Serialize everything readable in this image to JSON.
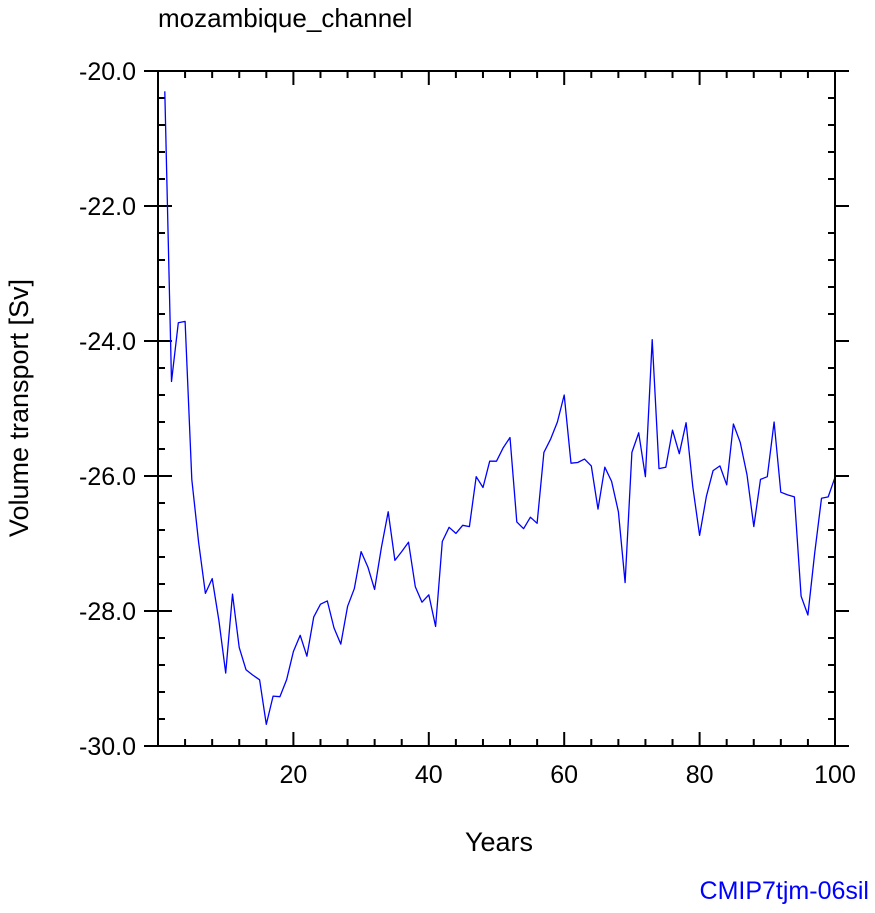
{
  "chart_data": {
    "type": "line",
    "title": "mozambique_channel",
    "xlabel": "Years",
    "ylabel": "Volume transport [Sv]",
    "xlim": [
      0,
      100
    ],
    "ylim": [
      -30.0,
      -20.0
    ],
    "x_ticks": [
      20,
      40,
      60,
      80,
      100
    ],
    "x_tick_labels": [
      "20",
      "40",
      "60",
      "80",
      "100"
    ],
    "y_ticks": [
      -30.0,
      -28.0,
      -26.0,
      -24.0,
      -22.0,
      -20.0
    ],
    "y_tick_labels": [
      "-30.0",
      "-28.0",
      "-26.0",
      "-24.0",
      "-22.0",
      "-20.0"
    ],
    "grid": false,
    "line_color": "#0000ff",
    "series": [
      {
        "x": [
          1,
          2,
          3,
          4,
          5,
          6,
          7,
          8,
          9,
          10,
          11,
          12,
          13,
          14,
          15,
          16,
          17,
          18,
          19,
          20,
          21,
          22,
          23,
          24,
          25,
          26,
          27,
          28,
          29,
          30,
          31,
          32,
          33,
          34,
          35,
          36,
          37,
          38,
          39,
          40,
          41,
          42,
          43,
          44,
          45,
          46,
          47,
          48,
          49,
          50,
          51,
          52,
          53,
          54,
          55,
          56,
          57,
          58,
          59,
          60,
          61,
          62,
          63,
          64,
          65,
          66,
          67,
          68,
          69,
          70,
          71,
          72,
          73,
          74,
          75,
          76,
          77,
          78,
          79,
          80,
          81,
          82,
          83,
          84,
          85,
          86,
          87,
          88,
          89,
          90,
          91,
          92,
          93,
          94,
          95,
          96,
          97,
          98,
          99,
          100
        ],
        "values": [
          -20.3,
          -24.6,
          -23.73,
          -23.71,
          -26.05,
          -26.98,
          -27.74,
          -27.52,
          -28.14,
          -28.92,
          -27.75,
          -28.54,
          -28.87,
          -28.95,
          -29.02,
          -29.68,
          -29.26,
          -29.27,
          -29.02,
          -28.6,
          -28.36,
          -28.67,
          -28.09,
          -27.9,
          -27.85,
          -28.25,
          -28.49,
          -27.93,
          -27.67,
          -27.12,
          -27.35,
          -27.68,
          -27.06,
          -26.53,
          -27.25,
          -27.12,
          -26.98,
          -27.64,
          -27.87,
          -27.76,
          -28.23,
          -26.97,
          -26.76,
          -26.85,
          -26.73,
          -26.75,
          -26.01,
          -26.17,
          -25.78,
          -25.78,
          -25.58,
          -25.43,
          -26.68,
          -26.78,
          -26.61,
          -26.7,
          -25.65,
          -25.45,
          -25.2,
          -24.8,
          -25.81,
          -25.8,
          -25.75,
          -25.85,
          -26.49,
          -25.87,
          -26.08,
          -26.53,
          -27.58,
          -25.65,
          -25.36,
          -26.01,
          -23.98,
          -25.89,
          -25.87,
          -25.32,
          -25.67,
          -25.21,
          -26.16,
          -26.88,
          -26.3,
          -25.92,
          -25.85,
          -26.13,
          -25.23,
          -25.5,
          -25.98,
          -26.75,
          -26.05,
          -26.01,
          -25.2,
          -26.24,
          -26.28,
          -26.31,
          -27.78,
          -28.06,
          -27.14,
          -26.33,
          -26.31,
          -26.02
        ]
      }
    ]
  },
  "credit_label": "CMIP7tjm-06sil"
}
